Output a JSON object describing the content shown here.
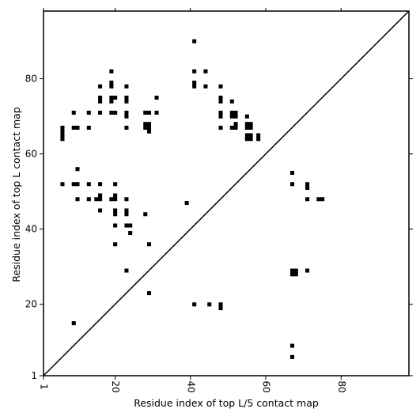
{
  "chart_data": {
    "type": "heatmap",
    "title": "",
    "xlabel": "Residue index of top L/5 contact map",
    "ylabel": "Residue index of top L contact map",
    "xlim": [
      1,
      98
    ],
    "ylim": [
      1,
      98
    ],
    "xticks": [
      1,
      20,
      40,
      60,
      80
    ],
    "yticks": [
      1,
      20,
      40,
      60,
      80
    ],
    "grid": false,
    "diagonal": true,
    "mark_color": "#000000",
    "upper_left_contacts": [
      [
        41,
        90
      ],
      [
        19,
        82
      ],
      [
        41,
        82
      ],
      [
        44,
        82
      ],
      [
        16,
        78
      ],
      [
        19,
        79
      ],
      [
        19,
        78
      ],
      [
        23,
        78
      ],
      [
        41,
        79
      ],
      [
        41,
        78
      ],
      [
        44,
        78
      ],
      [
        48,
        78
      ],
      [
        16,
        75
      ],
      [
        16,
        74
      ],
      [
        19,
        75
      ],
      [
        19,
        74
      ],
      [
        20,
        75
      ],
      [
        23,
        75
      ],
      [
        23,
        74
      ],
      [
        31,
        75
      ],
      [
        48,
        75
      ],
      [
        48,
        74
      ],
      [
        51,
        74
      ],
      [
        9,
        71
      ],
      [
        13,
        71
      ],
      [
        16,
        71
      ],
      [
        19,
        71
      ],
      [
        20,
        71
      ],
      [
        23,
        71
      ],
      [
        23,
        70
      ],
      [
        28,
        71
      ],
      [
        29,
        71
      ],
      [
        31,
        71
      ],
      [
        48,
        71
      ],
      [
        48,
        70
      ],
      [
        51,
        71
      ],
      [
        51,
        70
      ],
      [
        52,
        71
      ],
      [
        52,
        70
      ],
      [
        55,
        70
      ],
      [
        6,
        67
      ],
      [
        6,
        66
      ],
      [
        6,
        65
      ],
      [
        6,
        64
      ],
      [
        9,
        67
      ],
      [
        10,
        67
      ],
      [
        13,
        67
      ],
      [
        23,
        67
      ],
      [
        28,
        68
      ],
      [
        28,
        67
      ],
      [
        29,
        68
      ],
      [
        29,
        67
      ],
      [
        29,
        66
      ],
      [
        48,
        67
      ],
      [
        51,
        67
      ],
      [
        52,
        67
      ],
      [
        52,
        68
      ],
      [
        55,
        68
      ],
      [
        55,
        67
      ],
      [
        56,
        68
      ],
      [
        56,
        67
      ],
      [
        55,
        65
      ],
      [
        55,
        64
      ],
      [
        56,
        65
      ],
      [
        56,
        64
      ],
      [
        58,
        65
      ],
      [
        58,
        64
      ],
      [
        10,
        56
      ],
      [
        6,
        52
      ],
      [
        9,
        52
      ],
      [
        10,
        52
      ],
      [
        13,
        52
      ],
      [
        16,
        52
      ],
      [
        20,
        52
      ],
      [
        10,
        48
      ],
      [
        13,
        48
      ],
      [
        15,
        48
      ],
      [
        16,
        49
      ],
      [
        16,
        48
      ],
      [
        19,
        48
      ],
      [
        20,
        49
      ],
      [
        20,
        48
      ],
      [
        23,
        48
      ],
      [
        16,
        45
      ],
      [
        20,
        45
      ],
      [
        20,
        44
      ],
      [
        23,
        45
      ],
      [
        23,
        44
      ],
      [
        28,
        44
      ],
      [
        39,
        47
      ],
      [
        20,
        41
      ],
      [
        23,
        41
      ],
      [
        24,
        41
      ],
      [
        24,
        39
      ],
      [
        20,
        36
      ],
      [
        29,
        36
      ],
      [
        23,
        29
      ],
      [
        29,
        23
      ],
      [
        9,
        15
      ]
    ],
    "lower_right_contacts": [
      [
        67,
        55
      ],
      [
        67,
        52
      ],
      [
        71,
        52
      ],
      [
        71,
        51
      ],
      [
        71,
        48
      ],
      [
        74,
        48
      ],
      [
        75,
        48
      ],
      [
        67,
        29
      ],
      [
        67,
        28
      ],
      [
        68,
        29
      ],
      [
        68,
        28
      ],
      [
        71,
        29
      ],
      [
        41,
        20
      ],
      [
        45,
        20
      ],
      [
        48,
        20
      ],
      [
        48,
        19
      ],
      [
        67,
        9
      ],
      [
        67,
        6
      ]
    ]
  }
}
